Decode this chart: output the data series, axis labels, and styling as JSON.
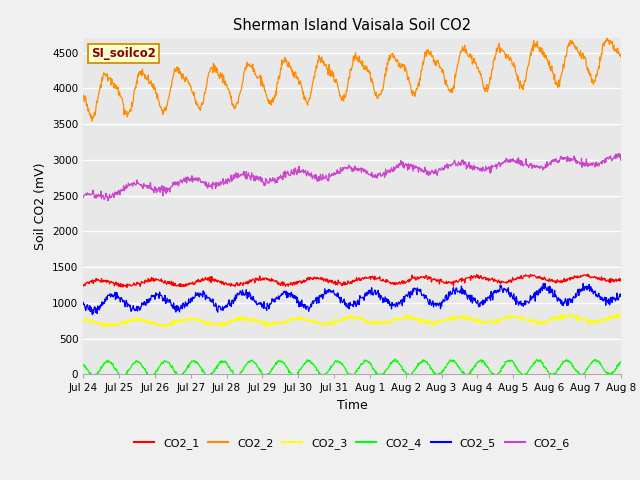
{
  "title": "Sherman Island Vaisala Soil CO2",
  "xlabel": "Time",
  "ylabel": "Soil CO2 (mV)",
  "legend_label": "SI_soilco2",
  "ylim": [
    0,
    4700
  ],
  "yticks": [
    0,
    500,
    1000,
    1500,
    2000,
    2500,
    3000,
    3500,
    4000,
    4500
  ],
  "xtick_labels": [
    "Jul 24",
    "Jul 25",
    "Jul 26",
    "Jul 27",
    "Jul 28",
    "Jul 29",
    "Jul 30",
    "Jul 31",
    "Aug 1",
    "Aug 2",
    "Aug 3",
    "Aug 4",
    "Aug 5",
    "Aug 6",
    "Aug 7",
    "Aug 8"
  ],
  "n_points": 1000,
  "background_color": "#f0f0f0",
  "plot_bg_color": "#e8e8e8",
  "series": [
    {
      "name": "CO2_1",
      "color": "#ff0000",
      "base": 1270,
      "amp": 40,
      "trend": 80,
      "noise": 15,
      "period": 1.5
    },
    {
      "name": "CO2_2",
      "color": "#ff8c00",
      "base": 3920,
      "amp": 260,
      "trend": 520,
      "noise": 30,
      "period": 1.0
    },
    {
      "name": "CO2_3",
      "color": "#ffff00",
      "base": 720,
      "amp": 40,
      "trend": 60,
      "noise": 15,
      "period": 1.5
    },
    {
      "name": "CO2_4",
      "color": "#00ff00",
      "base": 80,
      "amp": 100,
      "trend": 20,
      "noise": 10,
      "period": 0.8
    },
    {
      "name": "CO2_5",
      "color": "#0000ff",
      "base": 1000,
      "amp": 100,
      "trend": 120,
      "noise": 30,
      "period": 1.2
    },
    {
      "name": "CO2_6",
      "color": "#cc44cc",
      "base": 2420,
      "amp": 80,
      "trend": 580,
      "noise": 25,
      "period": 1.3
    }
  ]
}
